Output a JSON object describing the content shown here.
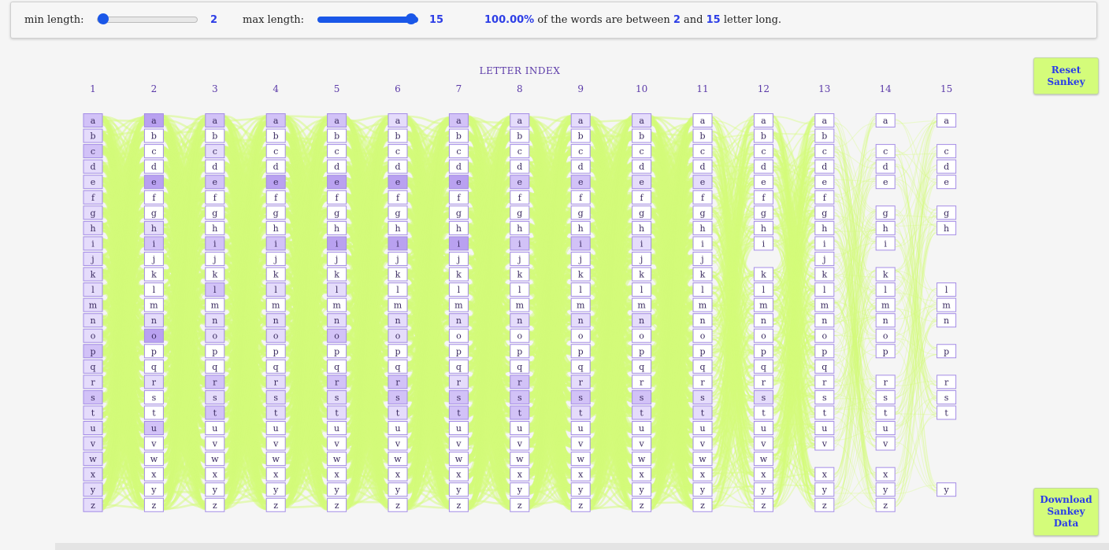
{
  "controls": {
    "min_label": "min length:",
    "min_value": "2",
    "max_label": "max length:",
    "max_value": "15",
    "range_min": 2,
    "range_max": 15,
    "percent": "100.00%",
    "summary_text1": " of the words are between ",
    "summary_and": " and ",
    "summary_text2": " letter long.",
    "slider_color": "#1a57e8"
  },
  "chart_data": {
    "type": "sankey",
    "title": "LETTER INDEX",
    "columns": [
      {
        "index": "1",
        "letters": "abcdefghijklmnopqrstuvwxyz",
        "highlight": {
          "a": 2,
          "b": 1,
          "c": 2,
          "d": 1,
          "e": 1,
          "f": 1,
          "g": 1,
          "h": 1,
          "i": 1,
          "j": 1,
          "k": 1,
          "l": 1,
          "m": 1,
          "n": 1,
          "o": 1,
          "p": 2,
          "q": 1,
          "r": 1,
          "s": 2,
          "t": 1,
          "u": 1,
          "v": 1,
          "w": 1,
          "x": 1,
          "y": 1,
          "z": 1
        }
      },
      {
        "index": "2",
        "letters": "abcdefghijklmnopqrstuvwxyz",
        "highlight": {
          "a": 3,
          "e": 3,
          "i": 2,
          "o": 3,
          "u": 2,
          "r": 1,
          "h": 1,
          "n": 1
        }
      },
      {
        "index": "3",
        "letters": "abcdefghijklmnopqrstuvwxyz",
        "highlight": {
          "a": 2,
          "e": 2,
          "i": 2,
          "n": 1,
          "r": 2,
          "s": 1,
          "t": 2,
          "l": 2,
          "o": 1,
          "c": 1
        }
      },
      {
        "index": "4",
        "letters": "abcdefghijklmnopqrstuvwxyz",
        "highlight": {
          "a": 2,
          "e": 3,
          "i": 2,
          "n": 1,
          "r": 1,
          "s": 1,
          "t": 1,
          "o": 1,
          "l": 1
        }
      },
      {
        "index": "5",
        "letters": "abcdefghijklmnopqrstuvwxyz",
        "highlight": {
          "a": 2,
          "e": 3,
          "i": 3,
          "n": 1,
          "r": 2,
          "s": 1,
          "t": 1,
          "o": 2,
          "l": 1
        }
      },
      {
        "index": "6",
        "letters": "abcdefghijklmnopqrstuvwxyz",
        "highlight": {
          "a": 1,
          "e": 3,
          "i": 3,
          "n": 1,
          "r": 2,
          "s": 2,
          "t": 1,
          "o": 1
        }
      },
      {
        "index": "7",
        "letters": "abcdefghijklmnopqrstuvwxyz",
        "highlight": {
          "a": 2,
          "e": 3,
          "i": 3,
          "n": 1,
          "r": 1,
          "s": 2,
          "t": 2
        }
      },
      {
        "index": "8",
        "letters": "abcdefghijklmnopqrstuvwxyz",
        "highlight": {
          "a": 1,
          "e": 2,
          "i": 2,
          "n": 1,
          "r": 2,
          "s": 2,
          "t": 2
        }
      },
      {
        "index": "9",
        "letters": "abcdefghijklmnopqrstuvwxyz",
        "highlight": {
          "a": 1,
          "e": 2,
          "i": 2,
          "n": 1,
          "r": 1,
          "s": 2,
          "t": 1
        }
      },
      {
        "index": "10",
        "letters": "abcdefghijklmnopqrstuvwxyz",
        "highlight": {
          "a": 1,
          "e": 1,
          "i": 1,
          "n": 1,
          "s": 2,
          "t": 1
        }
      },
      {
        "index": "11",
        "letters": "abcdefghijklmnopqrstuvwxyz",
        "highlight": {
          "e": 1,
          "s": 1,
          "t": 1
        }
      },
      {
        "index": "12",
        "letters": "abcdefghiklmnopqrstuvwxyz",
        "highlight": {
          "s": 1
        }
      },
      {
        "index": "13",
        "letters": "abcdefghijklmnopqrstuvxyz",
        "highlight": {}
      },
      {
        "index": "14",
        "letters": "acdeghiklmnoprstuvxyz",
        "highlight": {}
      },
      {
        "index": "15",
        "letters": "acdeghlmnprsty",
        "highlight": {}
      }
    ],
    "colors": {
      "flow": "#d4fc7a",
      "box_border": "#a48ce6",
      "box_fill": "#ffffff",
      "text": "#3a2a60",
      "shade_1": "#e5dcfb",
      "shade_2": "#d2c2f7",
      "shade_3": "#b9a1f0"
    }
  },
  "buttons": {
    "reset": "Reset\nSankey",
    "download": "Download\nSankey\nData"
  }
}
